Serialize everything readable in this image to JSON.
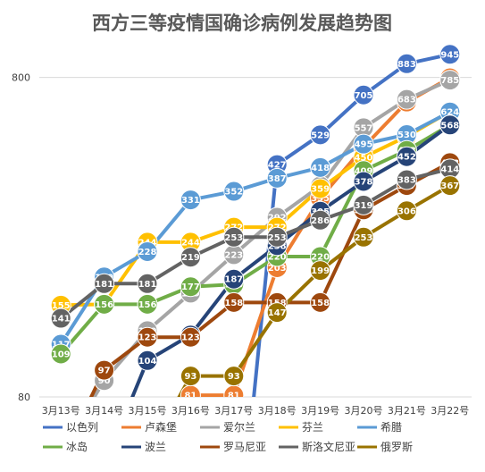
{
  "chart_data": {
    "type": "line",
    "title": "西方三等疫情国确诊病例发展趋势图",
    "xlabel": "",
    "ylabel": "",
    "y_scale": "log",
    "ylim": [
      80,
      1000
    ],
    "y_tick_labels": [
      "800",
      "80"
    ],
    "categories": [
      "3月13号",
      "3月14号",
      "3月15号",
      "3月16号",
      "3月17号",
      "3月18号",
      "3月19号",
      "3月20号",
      "3月21号",
      "3月22号"
    ],
    "grid": "horizontal",
    "legend_position": "bottom",
    "series": [
      {
        "name": "以色列",
        "color": "#4472C4",
        "values": [
          null,
          null,
          null,
          null,
          null,
          427,
          529,
          705,
          883,
          945
        ]
      },
      {
        "name": "卢森堡",
        "color": "#ED7D31",
        "values": [
          null,
          null,
          null,
          81,
          81,
          203,
          335,
          484,
          670,
          798
        ]
      },
      {
        "name": "爱尔兰",
        "color": "#A5A5A5",
        "values": [
          null,
          90,
          129,
          169,
          223,
          292,
          366,
          557,
          683,
          785
        ]
      },
      {
        "name": "芬兰",
        "color": "#FFC000",
        "values": [
          155,
          156,
          244,
          244,
          272,
          272,
          359,
          450,
          523,
          626
        ]
      },
      {
        "name": "希腊",
        "color": "#5B9BD5",
        "values": [
          117,
          190,
          228,
          331,
          352,
          387,
          418,
          495,
          530,
          624
        ]
      },
      {
        "name": "冰岛",
        "color": "#70AD47",
        "values": [
          109,
          156,
          156,
          177,
          180,
          220,
          220,
          409,
          473,
          568
        ]
      },
      {
        "name": "波兰",
        "color": "#264478",
        "values": [
          null,
          null,
          104,
          125,
          187,
          238,
          305,
          378,
          452,
          568
        ]
      },
      {
        "name": "罗马尼亚",
        "color": "#9E480E",
        "values": [
          null,
          97,
          123,
          123,
          158,
          158,
          158,
          308,
          367,
          433
        ]
      },
      {
        "name": "斯洛文尼亚",
        "color": "#636363",
        "values": [
          141,
          181,
          181,
          219,
          253,
          253,
          286,
          319,
          383,
          414
        ]
      },
      {
        "name": "俄罗斯",
        "color": "#997300",
        "values": [
          null,
          null,
          null,
          93,
          93,
          147,
          199,
          253,
          306,
          367
        ]
      }
    ]
  }
}
